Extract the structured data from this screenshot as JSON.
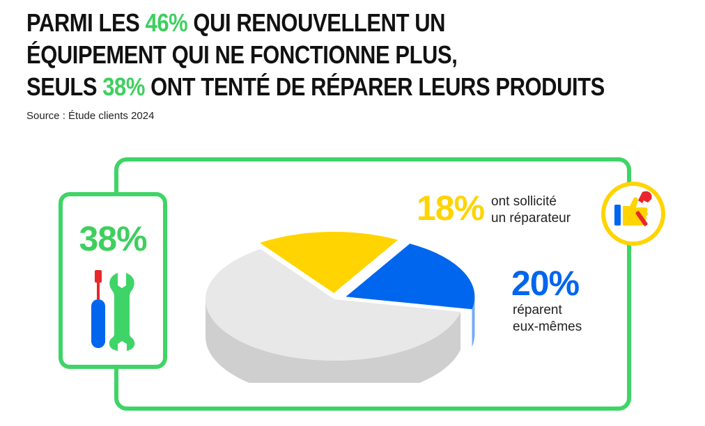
{
  "header": {
    "title_l1_a": "PARMI LES ",
    "title_l1_hl": "46%",
    "title_l1_b": " QUI RENOUVELLENT UN",
    "title_l2": "ÉQUIPEMENT QUI NE FONCTIONNE PLUS,",
    "title_l3_a": "SEULS ",
    "title_l3_hl": "38%",
    "title_l3_b": " ONT TENTÉ DE RÉPARER LEURS PRODUITS",
    "source": "Source : Étude clients 2024"
  },
  "summary": {
    "value": "38%",
    "icon": "screwdriver-wrench-icon"
  },
  "labels": {
    "yellow_value": "18%",
    "yellow_line1": "ont sollicité",
    "yellow_line2": "un réparateur",
    "blue_value": "20%",
    "blue_line1": "réparent",
    "blue_line2": "eux-mêmes"
  },
  "badge": {
    "icon": "thumbs-up-wrench-icon"
  },
  "colors": {
    "accent_green": "#3fd467",
    "yellow": "#ffd400",
    "blue": "#0066ee",
    "grey": "#e3e3e3"
  },
  "chart_data": {
    "type": "pie",
    "style": "3d-exploded",
    "series": [
      {
        "name": "ont sollicité un réparateur",
        "value": 18,
        "color": "#ffd400"
      },
      {
        "name": "réparent eux-mêmes",
        "value": 20,
        "color": "#0066ee"
      },
      {
        "value": 62,
        "color": "#e3e3e3"
      }
    ]
  }
}
